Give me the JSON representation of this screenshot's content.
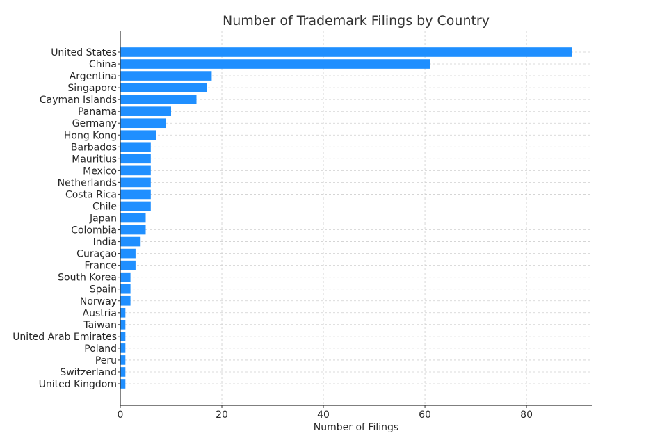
{
  "chart_data": {
    "type": "bar",
    "orientation": "horizontal",
    "title": "Number of Trademark Filings by Country",
    "xlabel": "Number of Filings",
    "ylabel": "",
    "categories": [
      "United States",
      "China",
      "Argentina",
      "Singapore",
      "Cayman Islands",
      "Panama",
      "Germany",
      "Hong Kong",
      "Barbados",
      "Mauritius",
      "Mexico",
      "Netherlands",
      "Costa Rica",
      "Chile",
      "Japan",
      "Colombia",
      "India",
      "Curaçao",
      "France",
      "South Korea",
      "Spain",
      "Norway",
      "Austria",
      "Taiwan",
      "United Arab Emirates",
      "Poland",
      "Peru",
      "Switzerland",
      "United Kingdom"
    ],
    "values": [
      89,
      61,
      18,
      17,
      15,
      10,
      9,
      7,
      6,
      6,
      6,
      6,
      6,
      6,
      5,
      5,
      4,
      3,
      3,
      2,
      2,
      2,
      1,
      1,
      1,
      1,
      1,
      1,
      1
    ],
    "xlim": [
      0,
      93
    ],
    "xticks": [
      0,
      20,
      40,
      60,
      80
    ],
    "grid": true,
    "bar_color": "#1f8fff"
  }
}
